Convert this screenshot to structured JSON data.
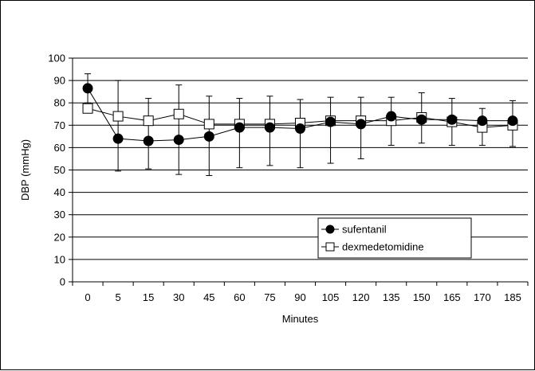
{
  "chart_data": {
    "type": "line",
    "xlabel": "Minutes",
    "ylabel": "DBP (mmHg)",
    "ylim": [
      0,
      100
    ],
    "yticks": [
      0,
      10,
      20,
      30,
      40,
      50,
      60,
      70,
      80,
      90,
      100
    ],
    "categories": [
      "0",
      "5",
      "15",
      "30",
      "45",
      "60",
      "75",
      "90",
      "105",
      "120",
      "135",
      "150",
      "165",
      "170",
      "185"
    ],
    "grid": "horizontal",
    "legend_position": "lower-right",
    "series": [
      {
        "name": "sufentanil",
        "marker": "filled-circle",
        "color": "#000000",
        "values": [
          86.5,
          64,
          63,
          63.5,
          65,
          69,
          69,
          68.5,
          71.5,
          70.5,
          74,
          72.5,
          72.5,
          72,
          72
        ],
        "err_low": [
          80,
          49.5,
          50.5,
          48,
          47.5,
          51,
          52,
          51,
          53,
          55,
          61,
          62,
          61,
          61,
          60.5
        ],
        "err_high": [
          93,
          90,
          82,
          88,
          83,
          82,
          83,
          81.5,
          82.5,
          82.5,
          82.5,
          84.5,
          82,
          77.5,
          81
        ]
      },
      {
        "name": "dexmedetomidine",
        "marker": "open-square",
        "color": "#000000",
        "values": [
          77.5,
          74,
          72,
          75,
          70.5,
          70.5,
          70.5,
          71,
          72,
          72,
          72,
          73.5,
          71.5,
          69,
          70
        ]
      }
    ]
  }
}
